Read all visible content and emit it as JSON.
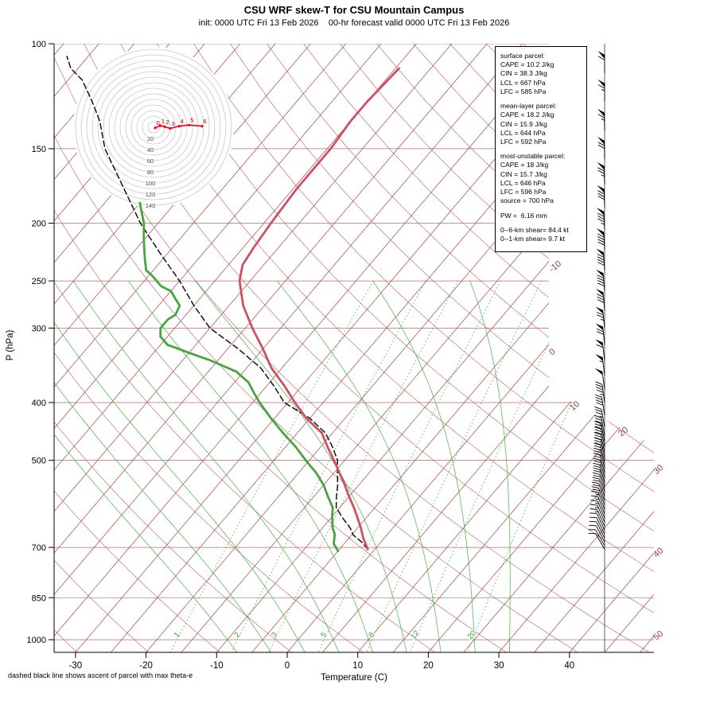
{
  "chart_data": {
    "type": "skewt-log-p",
    "title": "CSU WRF skew-T for CSU Mountain Campus",
    "subtitle": "init: 0000 UTC Fri 13 Feb 2026    00-hr forecast valid 0000 UTC Fri 13 Feb 2026",
    "xlabel": "Temperature (C)",
    "ylabel": "P (hPa)",
    "footnote": "dashed black line shows ascent of parcel with max theta-e",
    "p_range": [
      100,
      1050
    ],
    "pressure_ticks": [
      100,
      150,
      200,
      250,
      300,
      400,
      500,
      700,
      850,
      1000
    ],
    "temp_ticks_C": [
      -30,
      -20,
      -10,
      0,
      10,
      20,
      30,
      40
    ],
    "isotherm_range_C": [
      -110,
      50
    ],
    "isotherm_step_C": 5,
    "isotherm_labels_C": [
      -10,
      0,
      10,
      20,
      30,
      40,
      50
    ],
    "dry_adiabats_K": [
      240,
      250,
      260,
      270,
      280,
      290,
      300,
      310,
      320,
      330,
      340,
      350,
      360,
      370,
      380,
      390,
      400,
      410,
      420,
      430,
      440,
      450,
      460
    ],
    "moist_adiabats_C": [
      -10,
      -5,
      0,
      5,
      10,
      15,
      20,
      25,
      30
    ],
    "mixing_ratio_g_kg": [
      1,
      2,
      3,
      5,
      8,
      12,
      20
    ],
    "temperature_profile_pC": [
      [
        705,
        -1
      ],
      [
        690,
        -2
      ],
      [
        675,
        -3
      ],
      [
        650,
        -4.5
      ],
      [
        625,
        -6.2
      ],
      [
        600,
        -8
      ],
      [
        575,
        -10
      ],
      [
        550,
        -12
      ],
      [
        525,
        -14.2
      ],
      [
        500,
        -16.5
      ],
      [
        475,
        -19
      ],
      [
        450,
        -21.5
      ],
      [
        425,
        -25.5
      ],
      [
        400,
        -29
      ],
      [
        375,
        -32.5
      ],
      [
        350,
        -36.5
      ],
      [
        325,
        -40
      ],
      [
        300,
        -44
      ],
      [
        275,
        -48
      ],
      [
        250,
        -51.5
      ],
      [
        235,
        -53
      ],
      [
        220,
        -53.5
      ],
      [
        200,
        -54
      ],
      [
        175,
        -54.5
      ],
      [
        150,
        -54.5
      ],
      [
        135,
        -55
      ],
      [
        125,
        -55
      ],
      [
        110,
        -54.5
      ]
    ],
    "dewpoint_profile_pC": [
      [
        710,
        -5
      ],
      [
        690,
        -6.5
      ],
      [
        665,
        -7.5
      ],
      [
        650,
        -8.5
      ],
      [
        625,
        -9.8
      ],
      [
        600,
        -11
      ],
      [
        575,
        -13
      ],
      [
        550,
        -15
      ],
      [
        525,
        -17.5
      ],
      [
        500,
        -20.5
      ],
      [
        475,
        -23.5
      ],
      [
        450,
        -27
      ],
      [
        425,
        -30.5
      ],
      [
        400,
        -34
      ],
      [
        385,
        -36
      ],
      [
        370,
        -38
      ],
      [
        355,
        -41
      ],
      [
        340,
        -46
      ],
      [
        330,
        -50
      ],
      [
        320,
        -54
      ],
      [
        310,
        -56
      ],
      [
        300,
        -57
      ],
      [
        290,
        -57
      ],
      [
        285,
        -56.5
      ],
      [
        275,
        -57
      ],
      [
        270,
        -58
      ],
      [
        260,
        -60
      ],
      [
        255,
        -62
      ],
      [
        245,
        -64.5
      ],
      [
        240,
        -66
      ],
      [
        230,
        -67.5
      ],
      [
        220,
        -69
      ],
      [
        210,
        -70.5
      ],
      [
        200,
        -72
      ],
      [
        190,
        -74
      ],
      [
        185,
        -75
      ]
    ],
    "parcel_profile_pC": [
      [
        705,
        -1
      ],
      [
        685,
        -2.8
      ],
      [
        667,
        -4.8
      ],
      [
        650,
        -6
      ],
      [
        625,
        -8.3
      ],
      [
        600,
        -10.5
      ],
      [
        575,
        -11.8
      ],
      [
        550,
        -13
      ],
      [
        525,
        -14.5
      ],
      [
        500,
        -16
      ],
      [
        475,
        -18.3
      ],
      [
        450,
        -21
      ],
      [
        425,
        -25
      ],
      [
        400,
        -30.5
      ],
      [
        375,
        -34
      ],
      [
        350,
        -38
      ],
      [
        325,
        -43.5
      ],
      [
        300,
        -50
      ],
      [
        275,
        -55
      ],
      [
        250,
        -60
      ],
      [
        225,
        -66
      ],
      [
        200,
        -72.5
      ],
      [
        175,
        -79
      ],
      [
        150,
        -86.5
      ],
      [
        135,
        -90.5
      ],
      [
        125,
        -94
      ],
      [
        115,
        -98
      ],
      [
        110,
        -101
      ],
      [
        105,
        -103
      ]
    ],
    "wind_profile_p_kt_dir": [
      [
        705,
        8,
        300
      ],
      [
        695,
        9,
        300
      ],
      [
        685,
        10,
        298
      ],
      [
        675,
        10,
        297
      ],
      [
        665,
        11,
        296
      ],
      [
        655,
        12,
        295
      ],
      [
        645,
        13,
        294
      ],
      [
        635,
        14,
        293
      ],
      [
        625,
        15,
        292
      ],
      [
        615,
        16,
        291
      ],
      [
        605,
        17,
        290
      ],
      [
        595,
        18,
        289
      ],
      [
        585,
        19,
        288
      ],
      [
        575,
        20,
        287
      ],
      [
        565,
        21,
        286
      ],
      [
        555,
        22,
        285
      ],
      [
        545,
        23,
        285
      ],
      [
        535,
        24,
        284
      ],
      [
        525,
        25,
        284
      ],
      [
        515,
        26,
        283
      ],
      [
        505,
        27,
        283
      ],
      [
        495,
        28,
        282
      ],
      [
        485,
        30,
        282
      ],
      [
        475,
        31,
        281
      ],
      [
        465,
        32,
        281
      ],
      [
        455,
        33,
        280
      ],
      [
        440,
        35,
        280
      ],
      [
        420,
        42,
        279
      ],
      [
        400,
        46,
        278
      ],
      [
        380,
        51,
        278
      ],
      [
        360,
        56,
        277
      ],
      [
        340,
        62,
        277
      ],
      [
        320,
        68,
        276
      ],
      [
        300,
        75,
        276
      ],
      [
        280,
        82,
        275
      ],
      [
        260,
        88,
        275
      ],
      [
        240,
        92,
        274
      ],
      [
        222,
        88,
        273
      ],
      [
        205,
        84,
        273
      ],
      [
        188,
        79,
        272
      ],
      [
        172,
        74,
        272
      ],
      [
        156,
        70,
        271
      ],
      [
        140,
        67,
        271
      ],
      [
        125,
        64,
        270
      ],
      [
        112,
        62,
        270
      ]
    ],
    "hodograph": {
      "ring_step_kt": 10,
      "label_rings_kt": [
        20,
        40,
        60,
        80,
        100,
        120,
        140
      ],
      "max_kt": 140,
      "trace_kt": [
        [
          3,
          -1
        ],
        [
          12,
          3
        ],
        [
          20,
          1
        ],
        [
          30,
          -2
        ],
        [
          46,
          2
        ],
        [
          64,
          4
        ],
        [
          87,
          2
        ]
      ],
      "trace_labels_km": [
        "0",
        "1",
        "2",
        "3",
        "4",
        "5",
        "6"
      ]
    },
    "colors": {
      "grid_brown": "#a33d3d",
      "mixing_green": "#3aad3a",
      "moist_green": "#3aad3a",
      "temp_red": "#cf5064",
      "dewpoint_green": "#47a53f",
      "parcel_black": "#111111",
      "hodo_red": "#ee0011",
      "ring_gray": "#c8c8c8",
      "barb_black": "#000000"
    }
  },
  "info_box": {
    "sections": [
      {
        "title": "surface parcel:",
        "lines": [
          "CAPE = 10.2 J/kg",
          "CIN = 38.3 J/kg",
          "LCL = 667 hPa",
          "LFC = 585 hPa"
        ]
      },
      {
        "title": "mean-layer parcel:",
        "lines": [
          "CAPE = 18.2 J/kg",
          "CIN = 15.9 J/kg",
          "LCL = 644 hPa",
          "LFC = 592 hPa"
        ]
      },
      {
        "title": "most-unstable parcel:",
        "lines": [
          "CAPE = 18 J/kg",
          "CIN = 15.7 J/kg",
          "LCL = 646 hPa",
          "LFC = 596 hPa",
          "source = 700 hPa"
        ]
      },
      {
        "title": "PW =  6.16 mm",
        "lines": []
      },
      {
        "title": "",
        "lines": [
          "0--6-km shear= 84.4 kt",
          "0--1-km shear= 9.7 kt"
        ]
      }
    ]
  }
}
